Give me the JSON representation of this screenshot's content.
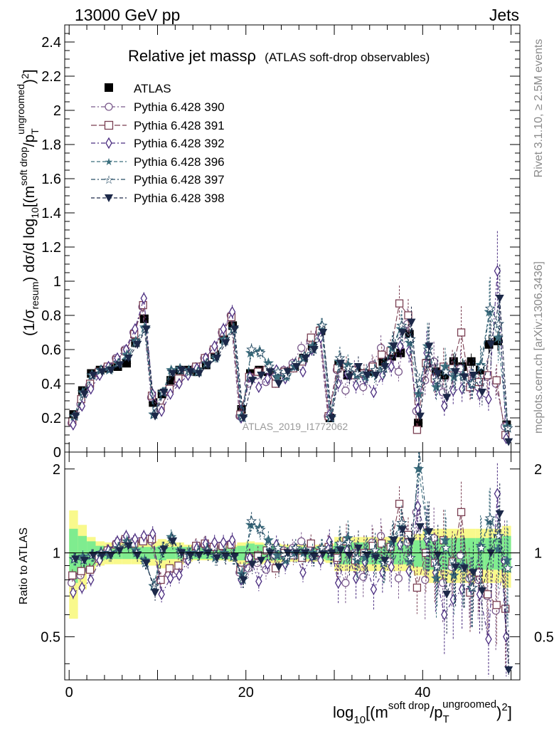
{
  "header": {
    "left": "13000 GeV pp",
    "right": "Jets"
  },
  "side_labels": {
    "rivet": "Rivet 3.1.10, ≥ 2.5M events",
    "mcplots": "mcplots.cern.ch [arXiv:1306.3436]"
  },
  "title": {
    "main": "Relative jet massρ",
    "sub": "(ATLAS soft-drop observables)"
  },
  "watermark": "ATLAS_2019_I1772062",
  "ratio_ylabel": "Ratio to ATLAS",
  "legend": {
    "entries": [
      "ATLAS",
      "Pythia 6.428 390",
      "Pythia 6.428 391",
      "Pythia 6.428 392",
      "Pythia 6.428 396",
      "Pythia 6.428 397",
      "Pythia 6.428 398"
    ]
  },
  "colors": {
    "data": "#000000",
    "s390": "#7b5a8c",
    "s391": "#7a3f52",
    "s392": "#4b2d80",
    "s396": "#3c6f7e",
    "s397": "#284e66",
    "s398": "#1c2848",
    "band_inner": "#7fec8f",
    "band_outer": "#f9f98c"
  },
  "chart_data": [
    {
      "type": "scatter",
      "panel": "main",
      "x": [
        0.5,
        1.5,
        2.5,
        3.5,
        4.5,
        5.5,
        6.5,
        7.5,
        8.5,
        9.5,
        10.5,
        11.5,
        12.5,
        13.5,
        14.5,
        15.5,
        16.5,
        17.5,
        18.5,
        19.5,
        20.5,
        21.5,
        22.5,
        23.5,
        24.5,
        25.5,
        26.5,
        27.5,
        28.5,
        29.5,
        30.5,
        31.5,
        32.5,
        33.5,
        34.5,
        35.5,
        36.5,
        37.5,
        38.5,
        39.5,
        40.5,
        41.5,
        42.5,
        43.5,
        44.5,
        45.5,
        46.5,
        47.5,
        48.5,
        49.5
      ],
      "xlim": [
        -0.5,
        51
      ],
      "ylim": [
        0,
        2.5
      ],
      "y_ticks": [
        0,
        0.2,
        0.4,
        0.6,
        0.8,
        1,
        1.2,
        1.4,
        1.6,
        1.8,
        2,
        2.2,
        2.4
      ],
      "y_tick_labels": [
        "0",
        "0.2",
        "0.4",
        "0.6",
        "0.8",
        "1",
        "1.2",
        "1.4",
        "1.6",
        "1.8",
        "2",
        "2.2",
        "2.4"
      ],
      "ylabel": "(1/σresum) dσ/d log10[(m soft drop/pT ungroomed)2]",
      "series": [
        {
          "name": "ATLAS",
          "marker": "square-filled",
          "values": [
            0.22,
            0.36,
            0.46,
            0.48,
            0.49,
            0.5,
            0.52,
            0.64,
            0.78,
            0.29,
            0.34,
            0.42,
            0.48,
            0.48,
            0.47,
            0.51,
            0.57,
            0.66,
            0.74,
            0.25,
            0.46,
            0.48,
            0.47,
            0.45,
            0.47,
            0.5,
            0.55,
            0.62,
            0.71,
            0.2,
            0.51,
            0.45,
            0.48,
            0.46,
            0.47,
            0.53,
            0.56,
            0.58,
            0.69,
            0.17,
            0.52,
            0.47,
            0.45,
            0.53,
            0.5,
            0.53,
            0.48,
            0.63,
            0.65,
            0.16
          ]
        },
        {
          "name": "Pythia 6.428 390",
          "marker": "circle-open",
          "values": [
            0.17,
            0.28,
            0.39,
            0.46,
            0.5,
            0.55,
            0.6,
            0.7,
            0.85,
            0.32,
            0.25,
            0.35,
            0.41,
            0.46,
            0.5,
            0.55,
            0.6,
            0.7,
            0.8,
            0.21,
            0.4,
            0.45,
            0.41,
            0.44,
            0.48,
            0.52,
            0.61,
            0.65,
            0.7,
            0.21,
            0.48,
            0.36,
            0.48,
            0.38,
            0.51,
            0.61,
            0.52,
            0.47,
            0.75,
            0.24,
            0.42,
            0.53,
            0.35,
            0.47,
            0.49,
            0.43,
            0.38,
            0.44,
            0.4,
            0.15
          ]
        },
        {
          "name": "Pythia 6.428 391",
          "marker": "square-open",
          "values": [
            0.18,
            0.31,
            0.4,
            0.47,
            0.5,
            0.54,
            0.59,
            0.69,
            0.86,
            0.33,
            0.26,
            0.37,
            0.43,
            0.47,
            0.5,
            0.55,
            0.6,
            0.7,
            0.79,
            0.22,
            0.44,
            0.47,
            0.48,
            0.4,
            0.47,
            0.49,
            0.53,
            0.67,
            0.71,
            0.21,
            0.49,
            0.5,
            0.45,
            0.46,
            0.5,
            0.57,
            0.59,
            0.87,
            0.8,
            0.13,
            0.52,
            0.43,
            0.5,
            0.49,
            0.7,
            0.38,
            0.41,
            0.45,
            0.42,
            0.1
          ]
        },
        {
          "name": "Pythia 6.428 392",
          "marker": "diamond-open",
          "values": [
            0.16,
            0.27,
            0.37,
            0.45,
            0.5,
            0.55,
            0.6,
            0.72,
            0.9,
            0.34,
            0.24,
            0.34,
            0.4,
            0.45,
            0.49,
            0.55,
            0.62,
            0.72,
            0.82,
            0.2,
            0.44,
            0.38,
            0.43,
            0.48,
            0.43,
            0.51,
            0.47,
            0.6,
            0.67,
            0.22,
            0.4,
            0.46,
            0.39,
            0.43,
            0.35,
            0.45,
            0.5,
            0.62,
            0.59,
            0.25,
            0.58,
            0.4,
            0.27,
            0.36,
            0.37,
            0.4,
            0.34,
            0.31,
            1.06,
            0.08
          ]
        },
        {
          "name": "Pythia 6.428 396",
          "marker": "star-filled",
          "values": [
            0.21,
            0.35,
            0.45,
            0.48,
            0.48,
            0.52,
            0.57,
            0.65,
            0.73,
            0.22,
            0.35,
            0.48,
            0.49,
            0.48,
            0.47,
            0.52,
            0.55,
            0.66,
            0.72,
            0.21,
            0.58,
            0.59,
            0.52,
            0.44,
            0.44,
            0.5,
            0.55,
            0.62,
            0.74,
            0.2,
            0.53,
            0.51,
            0.45,
            0.44,
            0.46,
            0.49,
            0.61,
            0.72,
            0.64,
            0.34,
            0.62,
            0.38,
            0.5,
            0.44,
            0.45,
            0.4,
            0.51,
            0.82,
            0.67,
            0.15
          ]
        },
        {
          "name": "Pythia 6.428 397",
          "marker": "star-open",
          "values": [
            0.21,
            0.34,
            0.45,
            0.48,
            0.49,
            0.52,
            0.56,
            0.64,
            0.72,
            0.22,
            0.35,
            0.47,
            0.48,
            0.47,
            0.47,
            0.52,
            0.56,
            0.65,
            0.72,
            0.2,
            0.6,
            0.58,
            0.5,
            0.47,
            0.45,
            0.52,
            0.56,
            0.6,
            0.74,
            0.2,
            0.55,
            0.49,
            0.46,
            0.46,
            0.48,
            0.49,
            0.63,
            0.74,
            0.66,
            0.4,
            0.6,
            0.42,
            0.47,
            0.48,
            0.44,
            0.4,
            0.5,
            0.84,
            0.75,
            0.14
          ]
        },
        {
          "name": "Pythia 6.428 398",
          "marker": "triangle-down-filled",
          "values": [
            0.21,
            0.34,
            0.45,
            0.47,
            0.48,
            0.51,
            0.55,
            0.63,
            0.72,
            0.21,
            0.35,
            0.46,
            0.48,
            0.47,
            0.46,
            0.51,
            0.55,
            0.64,
            0.72,
            0.2,
            0.42,
            0.45,
            0.47,
            0.4,
            0.47,
            0.5,
            0.55,
            0.6,
            0.7,
            0.2,
            0.52,
            0.44,
            0.5,
            0.45,
            0.45,
            0.5,
            0.62,
            0.7,
            0.76,
            0.21,
            0.62,
            0.46,
            0.32,
            0.47,
            0.44,
            0.45,
            0.35,
            0.63,
            0.9,
            0.06
          ]
        }
      ],
      "errors_relative": [
        0.04,
        0.04,
        0.04,
        0.04,
        0.04,
        0.04,
        0.04,
        0.04,
        0.04,
        0.05,
        0.05,
        0.05,
        0.05,
        0.05,
        0.05,
        0.05,
        0.05,
        0.05,
        0.05,
        0.05,
        0.06,
        0.06,
        0.06,
        0.06,
        0.06,
        0.06,
        0.06,
        0.06,
        0.06,
        0.08,
        0.12,
        0.12,
        0.12,
        0.12,
        0.12,
        0.12,
        0.12,
        0.12,
        0.12,
        0.15,
        0.22,
        0.22,
        0.22,
        0.22,
        0.22,
        0.22,
        0.22,
        0.22,
        0.22,
        0.3
      ]
    },
    {
      "type": "scatter",
      "panel": "ratio",
      "x": [
        0.5,
        1.5,
        2.5,
        3.5,
        4.5,
        5.5,
        6.5,
        7.5,
        8.5,
        9.5,
        10.5,
        11.5,
        12.5,
        13.5,
        14.5,
        15.5,
        16.5,
        17.5,
        18.5,
        19.5,
        20.5,
        21.5,
        22.5,
        23.5,
        24.5,
        25.5,
        26.5,
        27.5,
        28.5,
        29.5,
        30.5,
        31.5,
        32.5,
        33.5,
        34.5,
        35.5,
        36.5,
        37.5,
        38.5,
        39.5,
        40.5,
        41.5,
        42.5,
        43.5,
        44.5,
        45.5,
        46.5,
        47.5,
        48.5,
        49.5
      ],
      "xlim": [
        -0.5,
        51
      ],
      "ylim": [
        0.35,
        2.3
      ],
      "log_y": true,
      "y_ticks": [
        0.5,
        1,
        2
      ],
      "y_tick_labels": [
        "0.5",
        "1",
        "2"
      ],
      "x_ticks": [
        0,
        20,
        40
      ],
      "x_tick_labels": [
        "0",
        "20",
        "40"
      ],
      "xlabel": "log10[(m soft drop/pT ungroomed)2]",
      "ylabel": "Ratio to ATLAS",
      "band_inner": [
        0.22,
        0.15,
        0.1,
        0.06,
        0.05,
        0.05,
        0.05,
        0.05,
        0.05,
        0.05,
        0.06,
        0.05,
        0.05,
        0.05,
        0.05,
        0.05,
        0.05,
        0.05,
        0.05,
        0.06,
        0.08,
        0.07,
        0.06,
        0.06,
        0.05,
        0.05,
        0.05,
        0.05,
        0.05,
        0.06,
        0.09,
        0.09,
        0.09,
        0.09,
        0.09,
        0.09,
        0.09,
        0.09,
        0.09,
        0.11,
        0.13,
        0.13,
        0.13,
        0.13,
        0.13,
        0.13,
        0.13,
        0.13,
        0.13,
        0.15
      ],
      "band_outer": [
        0.42,
        0.26,
        0.14,
        0.1,
        0.09,
        0.09,
        0.09,
        0.09,
        0.09,
        0.1,
        0.12,
        0.11,
        0.09,
        0.07,
        0.06,
        0.06,
        0.06,
        0.06,
        0.07,
        0.09,
        0.1,
        0.09,
        0.08,
        0.08,
        0.07,
        0.07,
        0.07,
        0.07,
        0.07,
        0.08,
        0.14,
        0.14,
        0.14,
        0.14,
        0.14,
        0.14,
        0.14,
        0.14,
        0.14,
        0.17,
        0.22,
        0.22,
        0.22,
        0.22,
        0.22,
        0.22,
        0.22,
        0.22,
        0.22,
        0.25
      ],
      "series": [
        {
          "name": "Pythia 6.428 390",
          "values": [
            0.78,
            0.83,
            0.87,
            0.95,
            1.02,
            1.08,
            1.12,
            1.1,
            1.1,
            1.1,
            0.8,
            0.84,
            0.86,
            0.95,
            1.05,
            1.07,
            1.05,
            1.05,
            1.08,
            0.85,
            0.88,
            0.92,
            0.87,
            0.98,
            1.02,
            1.04,
            1.1,
            1.05,
            0.99,
            1.05,
            0.94,
            0.78,
            1.0,
            0.82,
            1.09,
            1.15,
            0.93,
            0.81,
            1.09,
            1.4,
            0.8,
            1.13,
            0.78,
            0.89,
            0.98,
            0.81,
            0.8,
            0.7,
            0.62,
            0.94
          ]
        },
        {
          "name": "Pythia 6.428 391",
          "values": [
            0.83,
            0.86,
            0.87,
            0.97,
            1.02,
            1.07,
            1.12,
            1.08,
            1.1,
            1.12,
            0.8,
            0.88,
            0.9,
            0.98,
            1.06,
            1.08,
            1.05,
            1.06,
            1.07,
            0.87,
            0.96,
            0.98,
            1.02,
            0.88,
            1.0,
            0.98,
            0.96,
            1.08,
            1.0,
            1.05,
            0.96,
            1.1,
            0.94,
            1.0,
            1.06,
            1.08,
            1.05,
            1.5,
            1.16,
            0.75,
            1.0,
            0.92,
            1.11,
            0.93,
            1.4,
            0.72,
            0.85,
            0.71,
            0.65,
            0.63
          ]
        },
        {
          "name": "Pythia 6.428 392",
          "values": [
            0.72,
            0.75,
            0.8,
            0.94,
            1.02,
            1.1,
            1.15,
            1.12,
            1.15,
            1.17,
            0.71,
            0.81,
            0.83,
            0.94,
            1.04,
            1.08,
            1.09,
            1.09,
            1.11,
            0.8,
            0.96,
            0.79,
            0.91,
            1.07,
            0.91,
            1.02,
            0.85,
            0.97,
            0.94,
            1.1,
            0.78,
            1.02,
            0.81,
            0.93,
            0.74,
            0.85,
            0.89,
            1.07,
            0.86,
            1.47,
            1.12,
            0.85,
            0.6,
            0.68,
            0.74,
            0.75,
            0.71,
            0.49,
            1.63,
            0.5
          ]
        },
        {
          "name": "Pythia 6.428 396",
          "values": [
            0.95,
            0.97,
            0.98,
            1.0,
            0.98,
            1.04,
            1.1,
            1.02,
            0.94,
            0.76,
            1.03,
            1.14,
            1.02,
            1.0,
            1.0,
            1.02,
            0.96,
            1.0,
            0.97,
            0.84,
            1.26,
            1.23,
            1.11,
            0.98,
            0.94,
            1.0,
            1.0,
            1.0,
            1.04,
            1.0,
            1.04,
            1.13,
            0.94,
            0.96,
            0.98,
            0.92,
            1.09,
            1.24,
            0.93,
            2.0,
            1.19,
            0.81,
            1.11,
            0.83,
            0.9,
            0.75,
            1.06,
            1.3,
            1.03,
            0.94
          ]
        },
        {
          "name": "Pythia 6.428 397",
          "values": [
            0.95,
            0.94,
            0.98,
            1.0,
            1.0,
            1.04,
            1.08,
            1.0,
            0.92,
            0.76,
            1.03,
            1.12,
            1.0,
            0.98,
            1.0,
            1.02,
            0.98,
            0.98,
            0.97,
            0.8,
            1.3,
            1.21,
            1.06,
            1.04,
            0.96,
            1.04,
            1.02,
            0.97,
            1.04,
            1.0,
            1.08,
            1.09,
            0.96,
            1.0,
            1.02,
            0.92,
            1.13,
            1.28,
            0.96,
            2.35,
            1.15,
            0.89,
            1.04,
            0.91,
            0.88,
            0.75,
            1.04,
            1.33,
            1.15,
            0.88
          ]
        },
        {
          "name": "Pythia 6.428 398",
          "values": [
            0.95,
            0.94,
            0.98,
            0.98,
            0.98,
            1.02,
            1.06,
            0.98,
            0.92,
            0.72,
            1.03,
            1.1,
            1.0,
            0.98,
            0.98,
            1.0,
            0.96,
            0.97,
            0.97,
            0.8,
            0.91,
            0.94,
            1.0,
            0.89,
            1.0,
            1.0,
            1.0,
            0.97,
            0.99,
            1.0,
            1.02,
            0.98,
            1.04,
            0.98,
            0.96,
            0.94,
            1.11,
            1.21,
            1.1,
            1.24,
            1.19,
            0.98,
            0.71,
            0.89,
            0.88,
            0.85,
            0.73,
            1.0,
            1.38,
            0.38
          ]
        }
      ]
    }
  ]
}
